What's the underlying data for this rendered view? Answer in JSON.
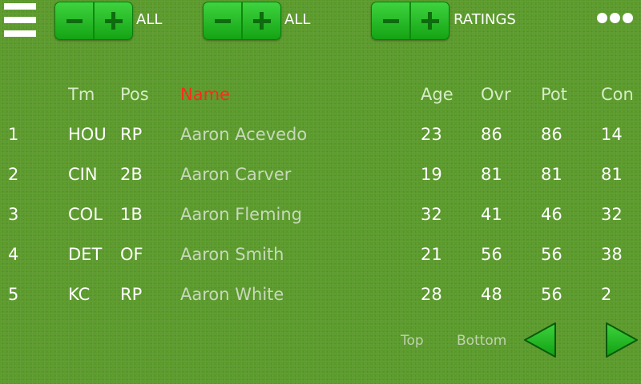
{
  "toolbar": {
    "filter1_label": "ALL",
    "filter2_label": "ALL",
    "filter3_label": "RATINGS"
  },
  "table": {
    "headers": {
      "team": "Tm",
      "pos": "Pos",
      "name": "Name",
      "age": "Age",
      "ovr": "Ovr",
      "pot": "Pot",
      "con": "Con"
    },
    "sorted_column": "Name",
    "rows": [
      {
        "rank": "1",
        "team": "HOU",
        "pos": "RP",
        "name": "Aaron Acevedo",
        "age": "23",
        "ovr": "86",
        "pot": "86",
        "con": "14"
      },
      {
        "rank": "2",
        "team": "CIN",
        "pos": "2B",
        "name": "Aaron Carver",
        "age": "19",
        "ovr": "81",
        "pot": "81",
        "con": "81"
      },
      {
        "rank": "3",
        "team": "COL",
        "pos": "1B",
        "name": "Aaron Fleming",
        "age": "32",
        "ovr": "41",
        "pot": "46",
        "con": "32"
      },
      {
        "rank": "4",
        "team": "DET",
        "pos": "OF",
        "name": "Aaron Smith",
        "age": "21",
        "ovr": "56",
        "pot": "56",
        "con": "38"
      },
      {
        "rank": "5",
        "team": "KC",
        "pos": "RP",
        "name": "Aaron White",
        "age": "28",
        "ovr": "48",
        "pot": "56",
        "con": "2"
      }
    ]
  },
  "nav": {
    "top_label": "Top",
    "bottom_label": "Bottom"
  },
  "colors": {
    "background": "#5a9a2a",
    "button_green": "#22b822",
    "sort_header": "#ff2a1a"
  },
  "icons": [
    "menu-icon",
    "minus-icon",
    "plus-icon",
    "more-icon",
    "arrow-left-icon",
    "arrow-right-icon"
  ]
}
